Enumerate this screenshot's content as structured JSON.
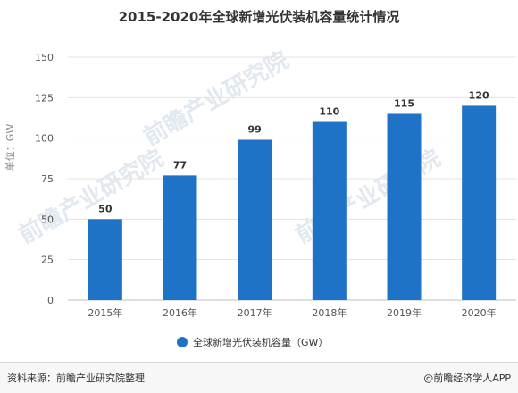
{
  "chart_data": {
    "type": "bar",
    "title": "2015-2020年全球新增光伏装机容量统计情况",
    "ylabel": "单位：GW",
    "categories": [
      "2015年",
      "2016年",
      "2017年",
      "2018年",
      "2019年",
      "2020年"
    ],
    "series": [
      {
        "name": "全球新增光伏装机容量（GW）",
        "values": [
          50,
          77,
          99,
          110,
          115,
          120
        ],
        "color": "#1e73c6"
      }
    ],
    "ylim": [
      0,
      150
    ],
    "yticks": [
      0,
      25,
      50,
      75,
      100,
      125,
      150
    ],
    "grid": true,
    "legend_position": "bottom"
  },
  "footer": {
    "source": "资料来源：前瞻产业研究院整理",
    "credit": "@前瞻经济学人APP"
  },
  "watermark": "前瞻产业研究院"
}
